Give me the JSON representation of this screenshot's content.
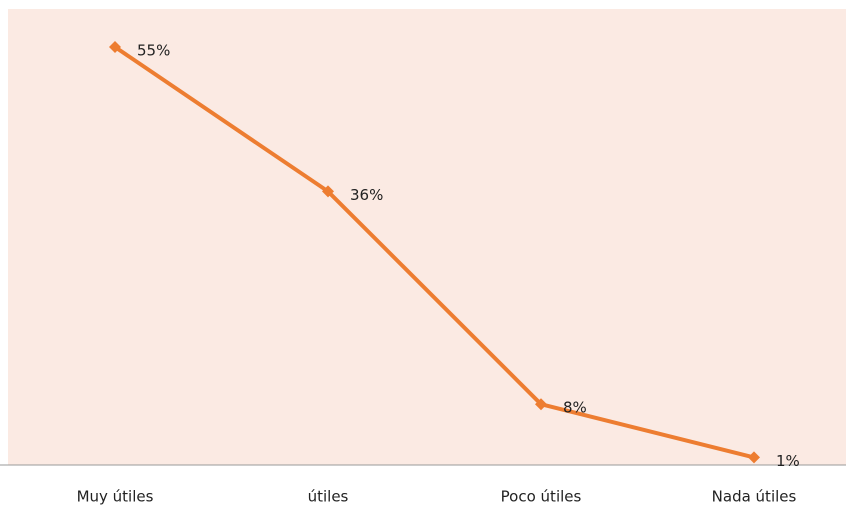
{
  "chart_data": {
    "type": "line",
    "categories": [
      "Muy útiles",
      "útiles",
      "Poco útiles",
      "Nada útiles"
    ],
    "series": [
      {
        "name": null,
        "color": "#ed7d31",
        "values": [
          55,
          36,
          8,
          1
        ],
        "value_labels": [
          "55%",
          "36%",
          "8%",
          "1%"
        ]
      }
    ],
    "ylim": [
      0,
      60
    ],
    "background": "#fbeae3"
  }
}
